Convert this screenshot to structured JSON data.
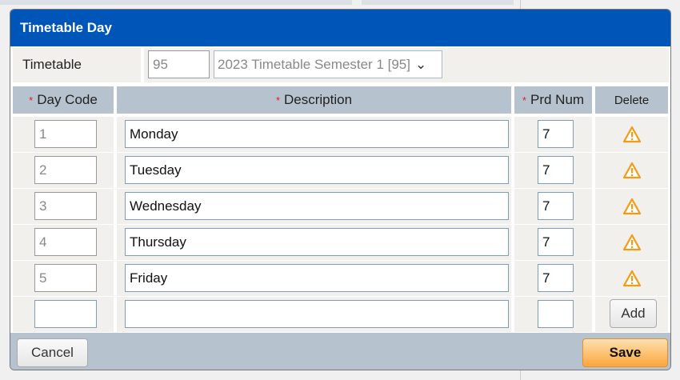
{
  "dialog": {
    "title": "Timetable Day"
  },
  "timetable": {
    "label": "Timetable",
    "code": "95",
    "selected": "2023 Timetable Semester 1 [95]"
  },
  "columns": {
    "day_code": "Day Code",
    "description": "Description",
    "prd_num": "Prd Num",
    "delete": "Delete",
    "required_mark": "*"
  },
  "rows": [
    {
      "day_code": "1",
      "description": "Monday",
      "prd_num": "7"
    },
    {
      "day_code": "2",
      "description": "Tuesday",
      "prd_num": "7"
    },
    {
      "day_code": "3",
      "description": "Wednesday",
      "prd_num": "7"
    },
    {
      "day_code": "4",
      "description": "Thursday",
      "prd_num": "7"
    },
    {
      "day_code": "5",
      "description": "Friday",
      "prd_num": "7"
    }
  ],
  "new_row": {
    "day_code": "",
    "description": "",
    "prd_num": "",
    "add_label": "Add"
  },
  "footer": {
    "cancel": "Cancel",
    "save": "Save"
  },
  "colors": {
    "header": "#0055b8",
    "save": "#fbb040",
    "warning": "#f39c12"
  }
}
